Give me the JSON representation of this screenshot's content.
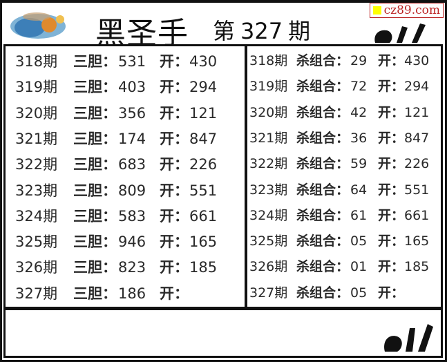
{
  "header": {
    "title": "黑圣手",
    "issue_prefix": "第",
    "issue_number": "327",
    "issue_suffix": "期",
    "watermark": "cz89.com",
    "watermark_color": "#b22222"
  },
  "left_panel": {
    "rows": [
      {
        "period": "318期",
        "label": "三胆：",
        "value": "531",
        "open_label": "开：",
        "open": "430"
      },
      {
        "period": "319期",
        "label": "三胆：",
        "value": "403",
        "open_label": "开：",
        "open": "294"
      },
      {
        "period": "320期",
        "label": "三胆：",
        "value": "356",
        "open_label": "开：",
        "open": "121"
      },
      {
        "period": "321期",
        "label": "三胆：",
        "value": "174",
        "open_label": "开：",
        "open": "847"
      },
      {
        "period": "322期",
        "label": "三胆：",
        "value": "683",
        "open_label": "开：",
        "open": "226"
      },
      {
        "period": "323期",
        "label": "三胆：",
        "value": "809",
        "open_label": "开：",
        "open": "551"
      },
      {
        "period": "324期",
        "label": "三胆：",
        "value": "583",
        "open_label": "开：",
        "open": "661"
      },
      {
        "period": "325期",
        "label": "三胆：",
        "value": "946",
        "open_label": "开：",
        "open": "165"
      },
      {
        "period": "326期",
        "label": "三胆：",
        "value": "823",
        "open_label": "开：",
        "open": "185"
      },
      {
        "period": "327期",
        "label": "三胆：",
        "value": "186",
        "open_label": "开：",
        "open": ""
      }
    ]
  },
  "right_panel": {
    "rows": [
      {
        "period": "318期",
        "label": "杀组合：",
        "value": "29",
        "open_label": "开：",
        "open": "430"
      },
      {
        "period": "319期",
        "label": "杀组合：",
        "value": "72",
        "open_label": "开：",
        "open": "294"
      },
      {
        "period": "320期",
        "label": "杀组合：",
        "value": "42",
        "open_label": "开：",
        "open": "121"
      },
      {
        "period": "321期",
        "label": "杀组合：",
        "value": "36",
        "open_label": "开：",
        "open": "847"
      },
      {
        "period": "322期",
        "label": "杀组合：",
        "value": "59",
        "open_label": "开：",
        "open": "226"
      },
      {
        "period": "323期",
        "label": "杀组合：",
        "value": "64",
        "open_label": "开：",
        "open": "551"
      },
      {
        "period": "324期",
        "label": "杀组合：",
        "value": "61",
        "open_label": "开：",
        "open": "661"
      },
      {
        "period": "325期",
        "label": "杀组合：",
        "value": "05",
        "open_label": "开：",
        "open": "165"
      },
      {
        "period": "326期",
        "label": "杀组合：",
        "value": "01",
        "open_label": "开：",
        "open": "185"
      },
      {
        "period": "327期",
        "label": "杀组合：",
        "value": "05",
        "open_label": "开：",
        "open": ""
      }
    ]
  }
}
